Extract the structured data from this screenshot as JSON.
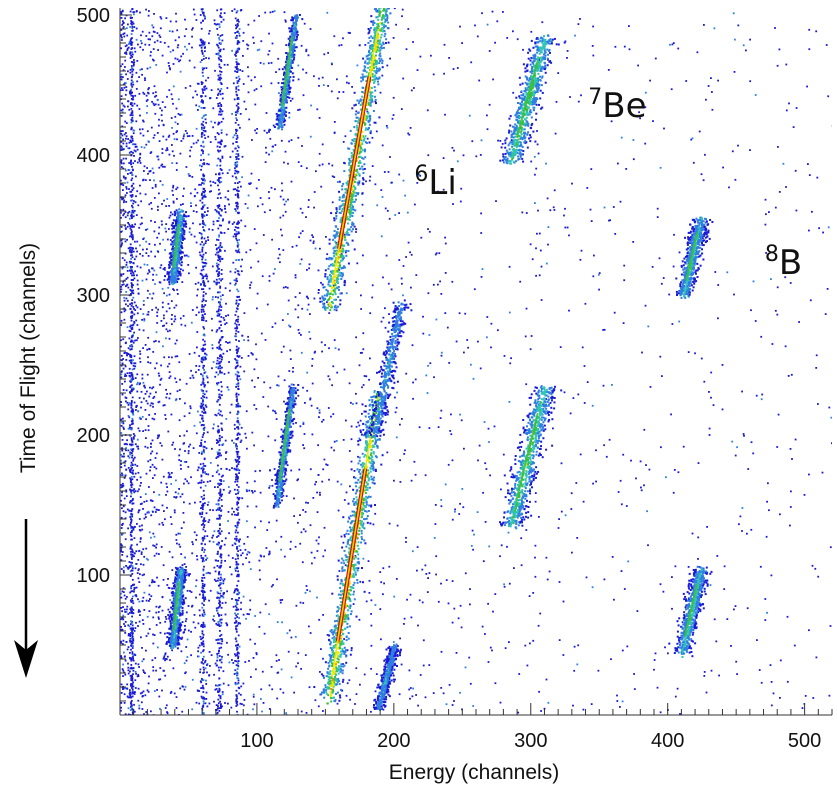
{
  "chart_data": {
    "type": "heatmap",
    "title": "",
    "xlabel": "Energy (channels)",
    "ylabel": "Time of Flight (channels)",
    "xlim": [
      0,
      520
    ],
    "ylim": [
      0,
      505
    ],
    "x_ticks": [
      100,
      200,
      300,
      400,
      500
    ],
    "y_ticks": [
      100,
      200,
      300,
      400,
      500
    ],
    "colormap": [
      "#1a1ad6",
      "#2f7fe0",
      "#2ec4b6",
      "#3bbf3b",
      "#f2e600",
      "#f08c00",
      "#c80000"
    ],
    "annotations": [
      {
        "isotope": "Li",
        "mass": "6",
        "x": 215,
        "y": 372
      },
      {
        "isotope": "Be",
        "mass": "7",
        "x": 342,
        "y": 427
      },
      {
        "isotope": "B",
        "mass": "8",
        "x": 471,
        "y": 315
      }
    ],
    "clusters": [
      {
        "name": "6Li upper band",
        "kind": "band",
        "from": [
          152,
          290
        ],
        "to": [
          192,
          510
        ],
        "peak": [
          170,
          390
        ],
        "width": 7,
        "intensity": 1.0
      },
      {
        "name": "6Li lower band",
        "kind": "band",
        "from": [
          152,
          10
        ],
        "to": [
          188,
          230
        ],
        "peak": [
          168,
          100
        ],
        "width": 7,
        "intensity": 1.0
      },
      {
        "name": "7Be upper cluster",
        "kind": "band",
        "from": [
          285,
          395
        ],
        "to": [
          310,
          485
        ],
        "peak": [
          298,
          435
        ],
        "width": 8,
        "intensity": 0.6
      },
      {
        "name": "7Be lower cluster",
        "kind": "band",
        "from": [
          285,
          135
        ],
        "to": [
          310,
          235
        ],
        "peak": [
          298,
          180
        ],
        "width": 8,
        "intensity": 0.6
      },
      {
        "name": "8B upper cluster",
        "kind": "band",
        "from": [
          411,
          300
        ],
        "to": [
          424,
          355
        ],
        "peak": [
          417,
          325
        ],
        "width": 6,
        "intensity": 0.45
      },
      {
        "name": "8B lower cluster",
        "kind": "band",
        "from": [
          410,
          45
        ],
        "to": [
          424,
          105
        ],
        "peak": [
          417,
          72
        ],
        "width": 6,
        "intensity": 0.45
      },
      {
        "name": "streak 120 upper",
        "kind": "band",
        "from": [
          116,
          420
        ],
        "to": [
          128,
          500
        ],
        "peak": [
          122,
          460
        ],
        "width": 3,
        "intensity": 0.4
      },
      {
        "name": "streak 120 lower",
        "kind": "band",
        "from": [
          114,
          150
        ],
        "to": [
          126,
          235
        ],
        "peak": [
          120,
          190
        ],
        "width": 3,
        "intensity": 0.4
      },
      {
        "name": "spot 40 upper",
        "kind": "band",
        "from": [
          38,
          310
        ],
        "to": [
          44,
          360
        ],
        "peak": [
          41,
          335
        ],
        "width": 4,
        "intensity": 0.45
      },
      {
        "name": "spot 40 lower",
        "kind": "band",
        "from": [
          38,
          50
        ],
        "to": [
          44,
          105
        ],
        "peak": [
          41,
          78
        ],
        "width": 4,
        "intensity": 0.45
      },
      {
        "name": "tail 195 upper",
        "kind": "band",
        "from": [
          185,
          200
        ],
        "to": [
          205,
          295
        ],
        "peak": [
          195,
          250
        ],
        "width": 5,
        "intensity": 0.3
      },
      {
        "name": "tail 195 lower",
        "kind": "band",
        "from": [
          188,
          5
        ],
        "to": [
          200,
          50
        ],
        "peak": [
          193,
          25
        ],
        "width": 4,
        "intensity": 0.3
      }
    ]
  }
}
